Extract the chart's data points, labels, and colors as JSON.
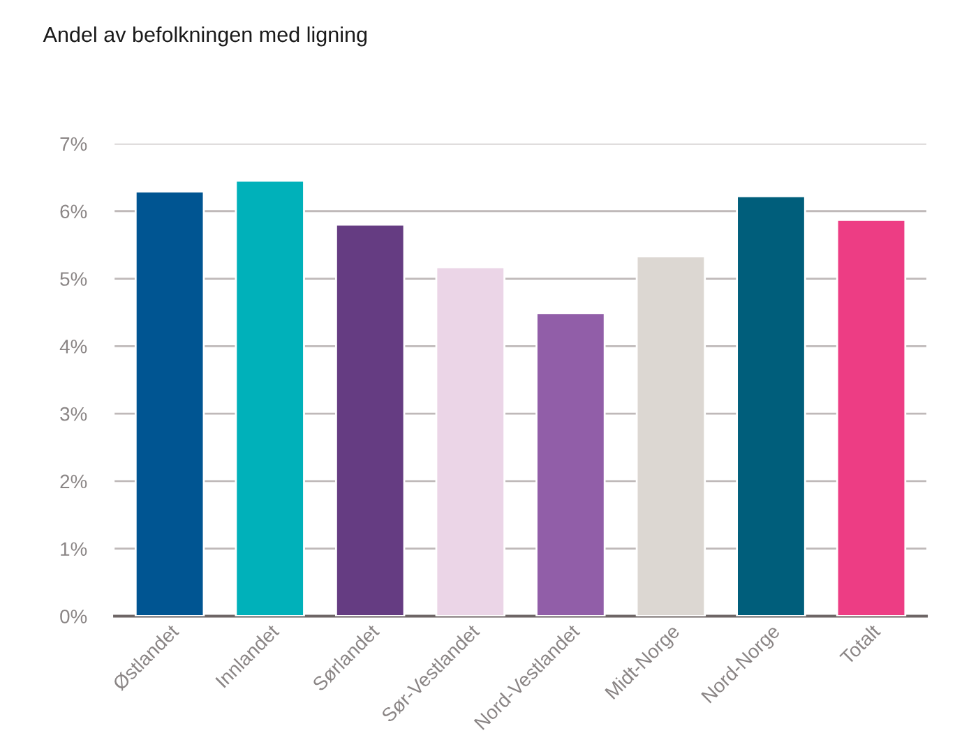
{
  "chart_data": {
    "type": "bar",
    "title": "Andel av befolkningen med ligning",
    "categories": [
      "Østlandet",
      "Innlandet",
      "Sørlandet",
      "Sør-Vestlandet",
      "Nord-Vestlandet",
      "Midt-Norge",
      "Nord-Norge",
      "Totalt"
    ],
    "values": [
      6.29,
      6.45,
      5.8,
      5.17,
      4.49,
      5.33,
      6.22,
      5.87
    ],
    "colors": [
      "#005592",
      "#00b1ba",
      "#653c82",
      "#ebd5e7",
      "#915ea8",
      "#dcd7d2",
      "#005e7b",
      "#ed3d84"
    ],
    "ylim": [
      0,
      7
    ],
    "yticks": [
      {
        "value": 0,
        "label": "0%"
      },
      {
        "value": 1,
        "label": "1%"
      },
      {
        "value": 2,
        "label": "2%"
      },
      {
        "value": 3,
        "label": "3%"
      },
      {
        "value": 4,
        "label": "4%"
      },
      {
        "value": 5,
        "label": "5%"
      },
      {
        "value": 6,
        "label": "6%"
      },
      {
        "value": 7,
        "label": "7%"
      }
    ],
    "grid": "y",
    "legend": false
  }
}
